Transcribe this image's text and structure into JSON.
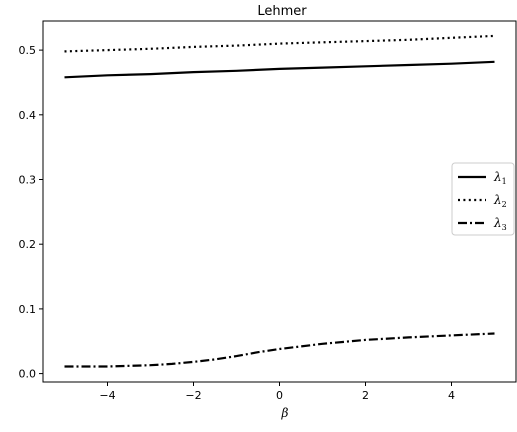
{
  "chart_data": {
    "type": "line",
    "title": "Lehmer",
    "xlabel": "β",
    "ylabel": "",
    "xlim": [
      -5.5,
      5.5
    ],
    "ylim": [
      -0.013,
      0.545
    ],
    "xticks": [
      -4,
      -2,
      0,
      2,
      4
    ],
    "xtick_labels": [
      "−4",
      "−2",
      "0",
      "2",
      "4"
    ],
    "yticks": [
      0.0,
      0.1,
      0.2,
      0.3,
      0.4,
      0.5
    ],
    "ytick_labels": [
      "0.0",
      "0.1",
      "0.2",
      "0.3",
      "0.4",
      "0.5"
    ],
    "grid": false,
    "legend_position": "center-right",
    "series": [
      {
        "name": "λ",
        "subscript": "1",
        "style": "solid",
        "x": [
          -5,
          -4,
          -3,
          -2,
          -1,
          0,
          1,
          2,
          3,
          4,
          5
        ],
        "y": [
          0.458,
          0.461,
          0.463,
          0.466,
          0.468,
          0.471,
          0.473,
          0.475,
          0.477,
          0.479,
          0.482
        ]
      },
      {
        "name": "λ",
        "subscript": "2",
        "style": "dotted",
        "x": [
          -5,
          -4,
          -3,
          -2,
          -1,
          0,
          1,
          2,
          3,
          4,
          5
        ],
        "y": [
          0.498,
          0.5,
          0.502,
          0.505,
          0.507,
          0.51,
          0.512,
          0.514,
          0.516,
          0.519,
          0.522
        ]
      },
      {
        "name": "λ",
        "subscript": "3",
        "style": "dashdot",
        "x": [
          -5,
          -4,
          -3,
          -2.5,
          -2,
          -1.5,
          -1,
          -0.5,
          0,
          0.5,
          1,
          2,
          3,
          4,
          5
        ],
        "y": [
          0.011,
          0.011,
          0.013,
          0.015,
          0.018,
          0.022,
          0.027,
          0.033,
          0.038,
          0.042,
          0.046,
          0.052,
          0.056,
          0.059,
          0.062
        ]
      }
    ]
  }
}
